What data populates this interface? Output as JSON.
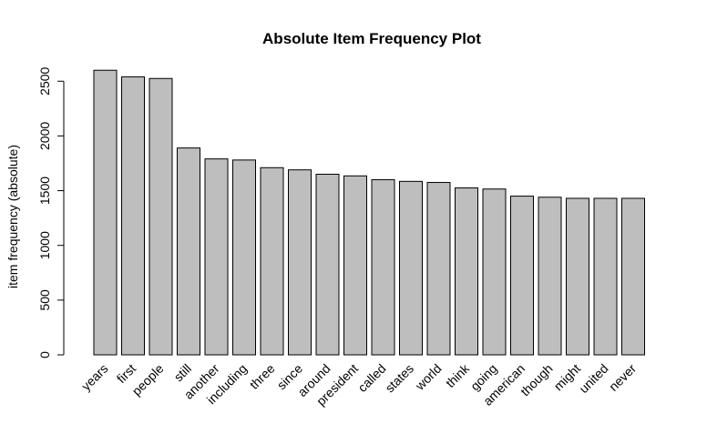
{
  "chart_data": {
    "type": "bar",
    "title": "Absolute Item Frequency Plot",
    "xlabel": "",
    "ylabel": "item frequency (absolute)",
    "categories": [
      "years",
      "first",
      "people",
      "still",
      "another",
      "including",
      "three",
      "since",
      "around",
      "president",
      "called",
      "states",
      "world",
      "think",
      "going",
      "american",
      "though",
      "might",
      "united",
      "never"
    ],
    "values": [
      2600,
      2540,
      2525,
      1890,
      1790,
      1780,
      1710,
      1690,
      1650,
      1635,
      1600,
      1585,
      1575,
      1525,
      1515,
      1450,
      1440,
      1430,
      1430,
      1430
    ],
    "ylim": [
      0,
      2600
    ],
    "yticks": [
      0,
      500,
      1000,
      1500,
      2000,
      2500
    ],
    "colors": {
      "bar_fill": "#bebebe",
      "bar_stroke": "#000000"
    }
  }
}
